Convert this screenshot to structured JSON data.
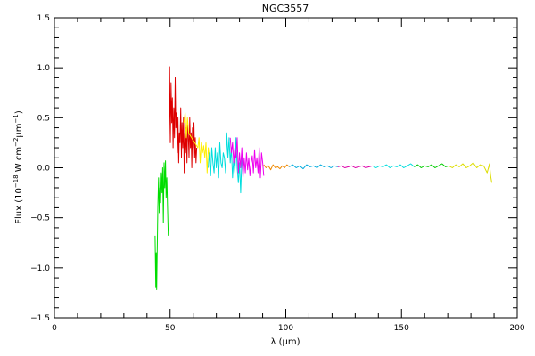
{
  "chart_data": {
    "type": "line",
    "title": "NGC3557",
    "xlabel": "λ (μm)",
    "ylabel": {
      "prefix": "Flux (10",
      "exp1": "−18",
      "mid": " W cm",
      "exp2": "−2",
      "unit": "μm",
      "exp3": "−1",
      "suffix": ")"
    },
    "xlim": [
      0,
      200
    ],
    "ylim": [
      -1.5,
      1.5
    ],
    "x_ticks": [
      0,
      50,
      100,
      150,
      200
    ],
    "x_tick_labels": [
      "0",
      "50",
      "100",
      "150",
      "200"
    ],
    "y_ticks": [
      -1.5,
      -1.0,
      -0.5,
      0.0,
      0.5,
      1.0,
      1.5
    ],
    "y_tick_labels": [
      "−1.5",
      "−1.0",
      "−0.5",
      "0.0",
      "0.5",
      "1.0",
      "1.5"
    ],
    "grid": false,
    "legend": "none",
    "series": [
      {
        "color": "#00dd00",
        "x": [
          43.5,
          43.8,
          44.0,
          44.2,
          44.4,
          44.7,
          45.0,
          45.3,
          45.6,
          45.9,
          46.2,
          46.5,
          46.8,
          47.1,
          47.4,
          47.7,
          48.0,
          48.3,
          48.6,
          48.9,
          49.2
        ],
        "y": [
          -0.68,
          -1.2,
          -0.85,
          -1.22,
          -0.9,
          -0.4,
          -0.1,
          -0.45,
          -0.2,
          -0.35,
          -0.05,
          -0.25,
          0.0,
          -0.55,
          0.05,
          -0.2,
          0.07,
          -0.3,
          -0.1,
          -0.4,
          -0.68
        ]
      },
      {
        "color": "#dd0000",
        "x": [
          49.5,
          49.8,
          50.1,
          50.4,
          50.7,
          51.0,
          51.3,
          51.6,
          51.9,
          52.2,
          52.5,
          52.8,
          53.1,
          53.4,
          53.7,
          54.0,
          54.3,
          54.6,
          54.9,
          55.2,
          55.5,
          55.8,
          56.1,
          56.4,
          56.7,
          57.0,
          57.3,
          57.6,
          57.9,
          58.2,
          58.5,
          58.8,
          59.1,
          59.4,
          59.7,
          60.0,
          60.3,
          60.6,
          60.9,
          61.2,
          61.5
        ],
        "y": [
          0.3,
          1.01,
          0.25,
          0.85,
          0.45,
          0.7,
          0.2,
          0.6,
          0.3,
          0.9,
          0.4,
          0.55,
          0.15,
          0.5,
          0.05,
          0.35,
          0.25,
          0.6,
          0.1,
          0.45,
          0.2,
          0.5,
          -0.05,
          0.35,
          0.15,
          0.4,
          0.05,
          0.45,
          0.3,
          0.1,
          0.5,
          0.2,
          0.35,
          0.0,
          0.4,
          0.2,
          0.45,
          0.1,
          0.3,
          0.05,
          0.2
        ]
      },
      {
        "color": "#ffee00",
        "x": [
          56.0,
          56.5,
          57.0,
          57.5,
          58.0,
          62.0,
          62.5,
          63.0,
          63.5,
          64.0,
          64.5,
          65.0,
          65.5,
          66.0,
          66.5,
          67.0
        ],
        "y": [
          0.45,
          0.55,
          0.3,
          0.5,
          0.35,
          0.2,
          0.3,
          0.05,
          0.25,
          0.15,
          0.22,
          0.1,
          0.25,
          -0.05,
          0.2,
          0.1
        ]
      },
      {
        "color": "#00dddd",
        "x": [
          66.5,
          67.0,
          67.5,
          68.0,
          68.5,
          69.0,
          69.5,
          70.0,
          70.5,
          71.0,
          71.5,
          72.0,
          72.5,
          73.0,
          73.5,
          74.0,
          74.5,
          75.0,
          75.5,
          76.0,
          76.5,
          77.0,
          77.5,
          78.0,
          78.5,
          79.0,
          79.5,
          80.0,
          80.5,
          81.0
        ],
        "y": [
          0.0,
          0.15,
          -0.08,
          0.2,
          0.05,
          -0.05,
          0.2,
          0.0,
          0.15,
          -0.1,
          0.25,
          0.05,
          0.0,
          0.15,
          0.1,
          -0.05,
          0.35,
          0.1,
          0.3,
          0.05,
          0.2,
          -0.1,
          0.1,
          -0.05,
          0.3,
          0.0,
          -0.15,
          0.05,
          -0.25,
          0.1
        ]
      },
      {
        "color": "#ee00ee",
        "x": [
          76.0,
          76.5,
          77.0,
          77.5,
          78.0,
          78.5,
          79.0,
          79.5,
          80.0,
          80.5,
          81.0,
          81.5,
          82.0,
          82.5,
          83.0,
          83.5,
          84.0,
          84.5,
          85.0,
          85.5,
          86.0,
          86.5,
          87.0,
          87.5,
          88.0,
          88.5,
          89.0,
          89.5,
          90.0,
          90.5
        ],
        "y": [
          0.3,
          0.15,
          0.25,
          0.05,
          0.2,
          0.1,
          0.3,
          -0.05,
          0.15,
          0.0,
          0.2,
          -0.1,
          0.1,
          -0.05,
          0.15,
          -0.02,
          0.1,
          -0.08,
          0.05,
          0.12,
          -0.05,
          0.18,
          0.0,
          0.1,
          -0.05,
          0.2,
          -0.1,
          0.15,
          0.05,
          -0.08
        ]
      },
      {
        "color": "#ee8800",
        "x": [
          90.5,
          91.5,
          92.5,
          93.5,
          94.5,
          95.5,
          96.5,
          97.5,
          98.5,
          99.5,
          100.5,
          101.5
        ],
        "y": [
          0.03,
          0.0,
          0.02,
          -0.02,
          0.03,
          0.0,
          0.01,
          -0.01,
          0.02,
          0.0,
          0.03,
          0.01
        ]
      },
      {
        "color": "#00aadd",
        "x": [
          101.5,
          103,
          104.5,
          106,
          107.5,
          109,
          110.5,
          112,
          113.5,
          115,
          116.5,
          118,
          119.5,
          121,
          122.5
        ],
        "y": [
          0.01,
          0.03,
          0.0,
          0.02,
          -0.01,
          0.03,
          0.01,
          0.02,
          0.0,
          0.03,
          0.01,
          0.02,
          0.0,
          0.02,
          0.01
        ]
      },
      {
        "color": "#dd00aa",
        "x": [
          122.5,
          124,
          125.5,
          127,
          128.5,
          130,
          131.5,
          133,
          134.5,
          136,
          137.5
        ],
        "y": [
          0.01,
          0.02,
          0.0,
          0.01,
          0.02,
          0.0,
          0.01,
          0.02,
          0.0,
          0.01,
          0.02
        ]
      },
      {
        "color": "#00dddd",
        "x": [
          137.5,
          139,
          140.5,
          142,
          143.5,
          145,
          146.5,
          148,
          149.5,
          151,
          152.5,
          154,
          155.5
        ],
        "y": [
          0.02,
          0.0,
          0.02,
          0.01,
          0.03,
          0.0,
          0.02,
          0.01,
          0.03,
          0.0,
          0.02,
          0.04,
          0.01
        ]
      },
      {
        "color": "#00cc00",
        "x": [
          155.5,
          157,
          158.5,
          160,
          161.5,
          163,
          164.5,
          166,
          167.5,
          169,
          170.5
        ],
        "y": [
          0.01,
          0.03,
          0.0,
          0.02,
          0.01,
          0.03,
          0.0,
          0.02,
          0.04,
          0.01,
          0.02
        ]
      },
      {
        "color": "#dddd00",
        "x": [
          170.5,
          172,
          173.5,
          175,
          176.5,
          178,
          179.5,
          181,
          182.5,
          184,
          185.5,
          187,
          188,
          188.5,
          189
        ],
        "y": [
          0.02,
          0.0,
          0.03,
          0.01,
          0.04,
          0.0,
          0.02,
          0.05,
          0.0,
          0.03,
          0.02,
          -0.05,
          0.04,
          -0.08,
          -0.15
        ]
      }
    ]
  }
}
